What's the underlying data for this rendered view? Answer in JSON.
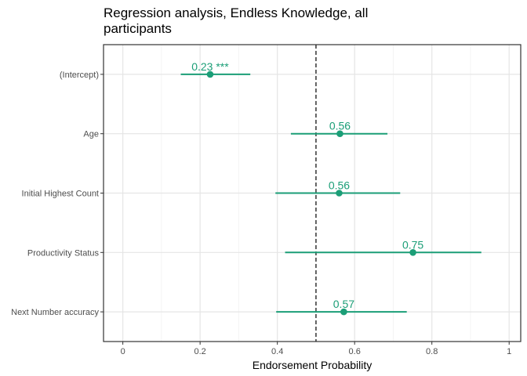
{
  "chart_data": {
    "type": "scatter",
    "title": "Regression analysis, Endless Knowledge, all participants",
    "title_lines": [
      "Regression analysis, Endless Knowledge, all",
      "participants"
    ],
    "xlabel": "Endorsement Probability",
    "ylabel": "",
    "xlim": [
      -0.05,
      1.03
    ],
    "x_ticks": [
      0,
      0.2,
      0.4,
      0.6,
      0.8,
      1
    ],
    "x_tick_labels": [
      "0",
      "0.2",
      "0.4",
      "0.6",
      "0.8",
      "1"
    ],
    "reference_line": 0.5,
    "grid": true,
    "color": "#1b9e77",
    "categories": [
      "(Intercept)",
      "Age",
      "Initial Highest Count",
      "Productivity Status",
      "Next Number accuracy"
    ],
    "estimates": [
      0.226,
      0.562,
      0.56,
      0.751,
      0.572
    ],
    "lower": [
      0.15,
      0.435,
      0.395,
      0.42,
      0.397
    ],
    "upper": [
      0.33,
      0.685,
      0.718,
      0.928,
      0.735
    ],
    "labels": [
      "0.23 ***",
      "0.56",
      "0.56",
      "0.75",
      "0.57"
    ]
  }
}
